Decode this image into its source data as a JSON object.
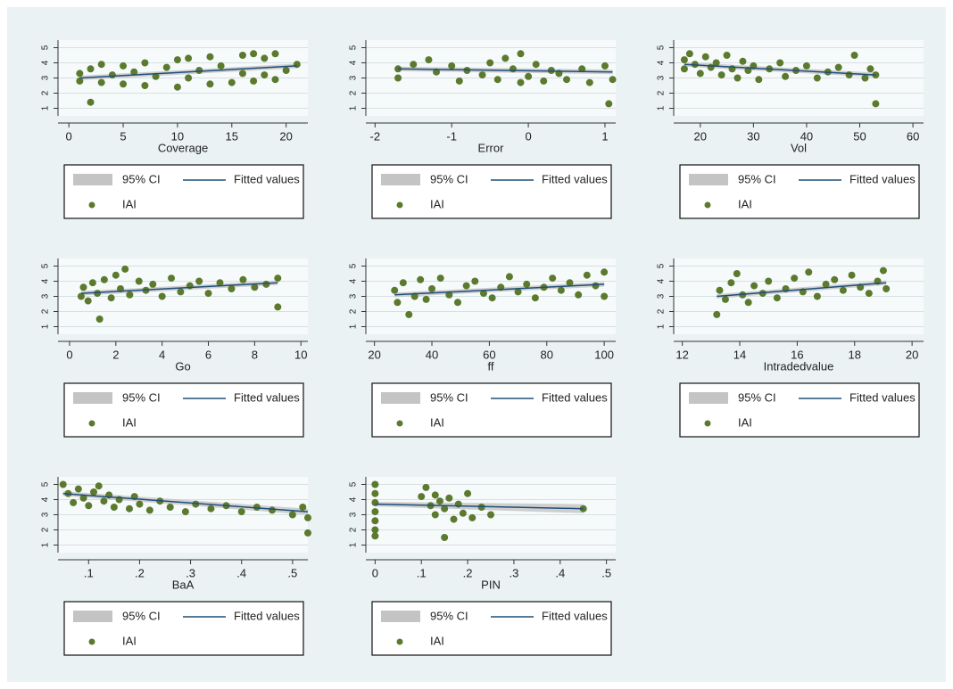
{
  "chart_data": [
    {
      "type": "scatter",
      "x_label": "Coverage",
      "xlim": [
        -1,
        22
      ],
      "xticks": [
        0,
        5,
        10,
        15,
        20
      ],
      "ylim": [
        0.5,
        5.5
      ],
      "yticks": [
        1,
        2,
        3,
        4,
        5
      ],
      "grid": true,
      "series": [
        {
          "name": "IAI",
          "color": "#5b7a2e",
          "x": [
            1,
            1,
            2,
            2,
            3,
            3,
            4,
            5,
            5,
            6,
            7,
            7,
            8,
            9,
            10,
            10,
            11,
            11,
            12,
            13,
            13,
            14,
            15,
            16,
            16,
            17,
            17,
            18,
            18,
            19,
            19,
            20,
            21
          ],
          "values": [
            2.8,
            3.3,
            1.4,
            3.6,
            2.7,
            3.9,
            3.2,
            2.6,
            3.8,
            3.4,
            2.5,
            4.0,
            3.1,
            3.7,
            2.4,
            4.2,
            3.0,
            4.3,
            3.5,
            2.6,
            4.4,
            3.8,
            2.7,
            4.5,
            3.3,
            4.6,
            2.8,
            4.3,
            3.2,
            4.6,
            2.9,
            3.5,
            3.9
          ]
        }
      ],
      "fit": {
        "name": "Fitted values",
        "color": "#1f4e79",
        "x": [
          1,
          21
        ],
        "values": [
          3.0,
          3.8
        ]
      },
      "ci": {
        "name": "95% CI",
        "color": "#c4c4c4",
        "x": [
          1,
          21
        ],
        "lower": [
          2.85,
          3.65
        ],
        "upper": [
          3.15,
          3.95
        ]
      }
    },
    {
      "type": "scatter",
      "x_label": "Error",
      "xlim": [
        -2.12,
        1.14
      ],
      "xticks": [
        -2,
        -1,
        0,
        1
      ],
      "ylim": [
        0.5,
        5.5
      ],
      "yticks": [
        1,
        2,
        3,
        4,
        5
      ],
      "grid": true,
      "series": [
        {
          "name": "IAI",
          "color": "#5b7a2e",
          "x": [
            -1.7,
            -1.7,
            -1.5,
            -1.3,
            -1.2,
            -1.0,
            -0.9,
            -0.8,
            -0.6,
            -0.5,
            -0.4,
            -0.3,
            -0.2,
            -0.1,
            -0.1,
            0.0,
            0.1,
            0.2,
            0.3,
            0.4,
            0.5,
            0.7,
            0.8,
            1.0,
            1.05,
            1.1
          ],
          "values": [
            3.0,
            3.6,
            3.9,
            4.2,
            3.4,
            3.8,
            2.8,
            3.5,
            3.2,
            4.0,
            2.9,
            4.3,
            3.6,
            2.7,
            4.6,
            3.1,
            3.9,
            2.8,
            3.5,
            3.3,
            2.9,
            3.6,
            2.7,
            3.8,
            1.3,
            2.9
          ]
        }
      ],
      "fit": {
        "name": "Fitted values",
        "color": "#1f4e79",
        "x": [
          -1.7,
          1.1
        ],
        "values": [
          3.6,
          3.4
        ]
      },
      "ci": {
        "name": "95% CI",
        "color": "#c4c4c4",
        "x": [
          -1.7,
          1.1
        ],
        "lower": [
          3.45,
          3.25
        ],
        "upper": [
          3.75,
          3.55
        ]
      }
    },
    {
      "type": "scatter",
      "x_label": "Vol",
      "xlim": [
        15,
        62
      ],
      "xticks": [
        20,
        30,
        40,
        50,
        60
      ],
      "ylim": [
        0.5,
        5.5
      ],
      "yticks": [
        1,
        2,
        3,
        4,
        5
      ],
      "grid": true,
      "series": [
        {
          "name": "IAI",
          "color": "#5b7a2e",
          "x": [
            17,
            17,
            18,
            19,
            20,
            21,
            22,
            23,
            24,
            25,
            26,
            27,
            28,
            29,
            30,
            31,
            33,
            35,
            36,
            38,
            40,
            42,
            44,
            46,
            48,
            49,
            51,
            52,
            53,
            53
          ],
          "values": [
            4.2,
            3.6,
            4.6,
            3.9,
            3.3,
            4.4,
            3.7,
            4.0,
            3.2,
            4.5,
            3.6,
            3.0,
            4.1,
            3.5,
            3.8,
            2.9,
            3.6,
            4.0,
            3.1,
            3.5,
            3.8,
            3.0,
            3.4,
            3.7,
            3.2,
            4.5,
            3.0,
            3.6,
            3.2,
            1.3
          ]
        }
      ],
      "fit": {
        "name": "Fitted values",
        "color": "#1f4e79",
        "x": [
          17,
          53
        ],
        "values": [
          3.9,
          3.2
        ]
      },
      "ci": {
        "name": "95% CI",
        "color": "#c4c4c4",
        "x": [
          17,
          53
        ],
        "lower": [
          3.75,
          3.05
        ],
        "upper": [
          4.05,
          3.35
        ]
      }
    },
    {
      "type": "scatter",
      "x_label": "Go",
      "xlim": [
        -0.5,
        10.3
      ],
      "xticks": [
        0,
        2,
        4,
        6,
        8,
        10
      ],
      "ylim": [
        0.5,
        5.5
      ],
      "yticks": [
        1,
        2,
        3,
        4,
        5
      ],
      "grid": true,
      "series": [
        {
          "name": "IAI",
          "color": "#5b7a2e",
          "x": [
            0.5,
            0.6,
            0.8,
            1.0,
            1.2,
            1.3,
            1.5,
            1.8,
            2.0,
            2.2,
            2.4,
            2.6,
            3.0,
            3.3,
            3.6,
            4.0,
            4.4,
            4.8,
            5.2,
            5.6,
            6.0,
            6.5,
            7.0,
            7.5,
            8.0,
            8.5,
            9.0,
            9.0
          ],
          "values": [
            3.0,
            3.6,
            2.7,
            3.9,
            3.2,
            1.5,
            4.1,
            2.9,
            4.4,
            3.5,
            4.8,
            3.1,
            4.0,
            3.4,
            3.8,
            3.0,
            4.2,
            3.3,
            3.7,
            4.0,
            3.2,
            3.9,
            3.5,
            4.1,
            3.6,
            3.8,
            4.2,
            2.3
          ]
        }
      ],
      "fit": {
        "name": "Fitted values",
        "color": "#1f4e79",
        "x": [
          0.5,
          9
        ],
        "values": [
          3.2,
          3.9
        ]
      },
      "ci": {
        "name": "95% CI",
        "color": "#c4c4c4",
        "x": [
          0.5,
          9
        ],
        "lower": [
          3.05,
          3.75
        ],
        "upper": [
          3.35,
          4.05
        ]
      }
    },
    {
      "type": "scatter",
      "x_label": "ff",
      "xlim": [
        17,
        104
      ],
      "xticks": [
        20,
        40,
        60,
        80,
        100
      ],
      "ylim": [
        0.5,
        5.5
      ],
      "yticks": [
        1,
        2,
        3,
        4,
        5
      ],
      "grid": true,
      "series": [
        {
          "name": "IAI",
          "color": "#5b7a2e",
          "x": [
            27,
            28,
            30,
            32,
            34,
            36,
            38,
            40,
            43,
            46,
            49,
            52,
            55,
            58,
            61,
            64,
            67,
            70,
            73,
            76,
            79,
            82,
            85,
            88,
            91,
            94,
            97,
            100,
            100
          ],
          "values": [
            3.4,
            2.6,
            3.9,
            1.8,
            3.0,
            4.1,
            2.8,
            3.5,
            4.2,
            3.1,
            2.6,
            3.7,
            4.0,
            3.2,
            2.9,
            3.6,
            4.3,
            3.3,
            3.8,
            2.9,
            3.6,
            4.2,
            3.4,
            3.9,
            3.1,
            4.4,
            3.7,
            4.6,
            3.0
          ]
        }
      ],
      "fit": {
        "name": "Fitted values",
        "color": "#1f4e79",
        "x": [
          27,
          100
        ],
        "values": [
          3.1,
          3.8
        ]
      },
      "ci": {
        "name": "95% CI",
        "color": "#c4c4c4",
        "x": [
          27,
          100
        ],
        "lower": [
          2.95,
          3.65
        ],
        "upper": [
          3.25,
          3.95
        ]
      }
    },
    {
      "type": "scatter",
      "x_label": "Intradedvalue",
      "xlim": [
        11.7,
        20.4
      ],
      "xticks": [
        12,
        14,
        16,
        18,
        20
      ],
      "ylim": [
        0.5,
        5.5
      ],
      "yticks": [
        1,
        2,
        3,
        4,
        5
      ],
      "grid": true,
      "series": [
        {
          "name": "IAI",
          "color": "#5b7a2e",
          "x": [
            13.2,
            13.3,
            13.5,
            13.7,
            13.9,
            14.1,
            14.3,
            14.5,
            14.8,
            15.0,
            15.3,
            15.6,
            15.9,
            16.2,
            16.4,
            16.7,
            17.0,
            17.3,
            17.6,
            17.9,
            18.2,
            18.5,
            18.8,
            19.0,
            19.1
          ],
          "values": [
            1.8,
            3.4,
            2.8,
            3.9,
            4.5,
            3.1,
            2.6,
            3.7,
            3.2,
            4.0,
            2.9,
            3.5,
            4.2,
            3.3,
            4.6,
            3.0,
            3.8,
            4.1,
            3.4,
            4.4,
            3.6,
            3.2,
            4.0,
            4.7,
            3.5
          ]
        }
      ],
      "fit": {
        "name": "Fitted values",
        "color": "#1f4e79",
        "x": [
          13.2,
          19.1
        ],
        "values": [
          3.0,
          3.9
        ]
      },
      "ci": {
        "name": "95% CI",
        "color": "#c4c4c4",
        "x": [
          13.2,
          19.1
        ],
        "lower": [
          2.85,
          3.75
        ],
        "upper": [
          3.15,
          4.05
        ]
      }
    },
    {
      "type": "scatter",
      "x_label": "BaA",
      "xlim": [
        0.04,
        0.53
      ],
      "xticks": [
        {
          "value": 0.1,
          "label": ".1"
        },
        {
          "value": 0.2,
          "label": ".2"
        },
        {
          "value": 0.3,
          "label": ".3"
        },
        {
          "value": 0.4,
          "label": ".4"
        },
        {
          "value": 0.5,
          "label": ".5"
        }
      ],
      "ylim": [
        0.5,
        5.5
      ],
      "yticks": [
        1,
        2,
        3,
        4,
        5
      ],
      "grid": true,
      "series": [
        {
          "name": "IAI",
          "color": "#5b7a2e",
          "x": [
            0.05,
            0.06,
            0.07,
            0.08,
            0.09,
            0.1,
            0.11,
            0.12,
            0.13,
            0.14,
            0.15,
            0.16,
            0.18,
            0.19,
            0.2,
            0.22,
            0.24,
            0.26,
            0.29,
            0.31,
            0.34,
            0.37,
            0.4,
            0.43,
            0.46,
            0.5,
            0.52,
            0.53,
            0.53
          ],
          "values": [
            5.0,
            4.4,
            3.8,
            4.7,
            4.1,
            3.6,
            4.5,
            4.9,
            3.9,
            4.3,
            3.5,
            4.0,
            3.4,
            4.2,
            3.7,
            3.3,
            3.9,
            3.5,
            3.2,
            3.7,
            3.4,
            3.6,
            3.2,
            3.5,
            3.3,
            3.0,
            3.5,
            1.8,
            2.8
          ]
        }
      ],
      "fit": {
        "name": "Fitted values",
        "color": "#1f4e79",
        "x": [
          0.05,
          0.53
        ],
        "values": [
          4.4,
          3.2
        ]
      },
      "ci": {
        "name": "95% CI",
        "color": "#c4c4c4",
        "x": [
          0.05,
          0.53
        ],
        "lower": [
          4.25,
          3.0
        ],
        "upper": [
          4.55,
          3.4
        ]
      }
    },
    {
      "type": "scatter",
      "x_label": "PIN",
      "xlim": [
        -0.02,
        0.52
      ],
      "xticks": [
        0,
        {
          "value": 0.1,
          "label": ".1"
        },
        {
          "value": 0.2,
          "label": ".2"
        },
        {
          "value": 0.3,
          "label": ".3"
        },
        {
          "value": 0.4,
          "label": ".4"
        },
        {
          "value": 0.5,
          "label": ".5"
        }
      ],
      "ylim": [
        0.5,
        5.5
      ],
      "yticks": [
        1,
        2,
        3,
        4,
        5
      ],
      "grid": true,
      "series": [
        {
          "name": "IAI",
          "color": "#5b7a2e",
          "x": [
            0,
            0,
            0,
            0,
            0,
            0,
            0,
            0.1,
            0.11,
            0.12,
            0.13,
            0.13,
            0.14,
            0.15,
            0.15,
            0.16,
            0.17,
            0.18,
            0.19,
            0.2,
            0.21,
            0.23,
            0.25,
            0.45
          ],
          "values": [
            5.0,
            4.4,
            3.8,
            3.2,
            2.6,
            2.0,
            1.6,
            4.2,
            4.8,
            3.6,
            4.3,
            3.0,
            3.9,
            1.5,
            3.4,
            4.1,
            2.7,
            3.7,
            3.1,
            4.4,
            2.8,
            3.5,
            3.0,
            3.4
          ]
        }
      ],
      "fit": {
        "name": "Fitted values",
        "color": "#1f4e79",
        "x": [
          0,
          0.45
        ],
        "values": [
          3.7,
          3.4
        ]
      },
      "ci": {
        "name": "95% CI",
        "color": "#c4c4c4",
        "x": [
          0,
          0.45
        ],
        "lower": [
          3.55,
          3.1
        ],
        "upper": [
          3.85,
          3.7
        ]
      }
    }
  ]
}
